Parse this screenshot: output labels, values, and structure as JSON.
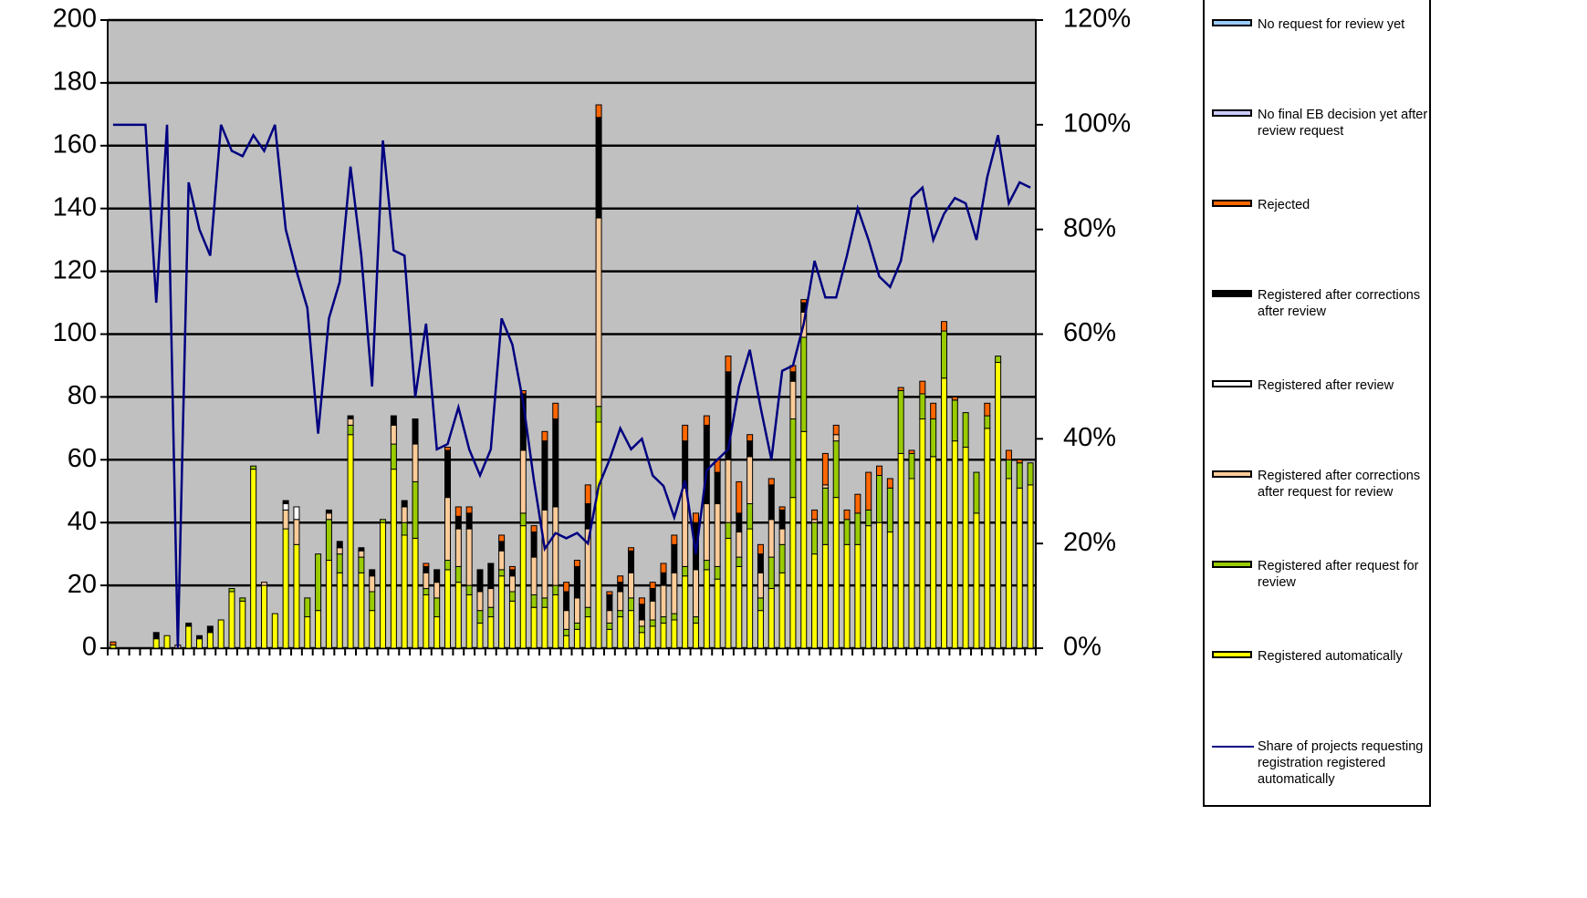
{
  "chart_data": {
    "type": "bar",
    "stacked": true,
    "categories": [
      null,
      null,
      null,
      null,
      null,
      null,
      null,
      null,
      null,
      null,
      null,
      null,
      null,
      null,
      null,
      null,
      null,
      null,
      null,
      null,
      null,
      null,
      null,
      null,
      null,
      null,
      null,
      null,
      null,
      null,
      null,
      null,
      null,
      null,
      null,
      null,
      null,
      null,
      null,
      null,
      null,
      null,
      null,
      null,
      null,
      null,
      null,
      null,
      null,
      null,
      null,
      null,
      null,
      null,
      null,
      null,
      null,
      null,
      null,
      null,
      null,
      null,
      null,
      null,
      null,
      null,
      null,
      null,
      null,
      null,
      null,
      null,
      null,
      null,
      null,
      null,
      null,
      null,
      null,
      null,
      null,
      null,
      null,
      null,
      null,
      null
    ],
    "ylim": [
      0,
      200
    ],
    "yticks": [
      0,
      20,
      40,
      60,
      80,
      100,
      120,
      140,
      160,
      180,
      200
    ],
    "y2lim": [
      0,
      120
    ],
    "y2ticks": [
      {
        "value": 0,
        "label": "0%"
      },
      {
        "value": 20,
        "label": "20%"
      },
      {
        "value": 40,
        "label": "40%"
      },
      {
        "value": 60,
        "label": "60%"
      },
      {
        "value": 80,
        "label": "80%"
      },
      {
        "value": 100,
        "label": "100%"
      },
      {
        "value": 120,
        "label": "120%"
      }
    ],
    "grid": true,
    "background": "#c0c0c0",
    "legend": "right",
    "series": [
      {
        "name": "Registered automatically",
        "color": "#ffff00",
        "values": [
          1,
          0,
          0,
          0,
          3,
          4,
          0,
          7,
          3,
          5,
          9,
          18,
          15,
          57,
          20,
          11,
          38,
          33,
          10,
          12,
          28,
          24,
          68,
          24,
          12,
          40,
          57,
          36,
          35,
          17,
          10,
          25,
          21,
          17,
          8,
          10,
          23,
          15,
          39,
          13,
          13,
          17,
          4,
          6,
          10,
          72,
          6,
          10,
          12,
          5,
          7,
          8,
          9,
          23,
          8,
          25,
          22,
          35,
          26,
          38,
          12,
          19,
          24,
          48,
          69,
          30,
          33,
          48,
          33,
          33,
          39,
          40,
          37,
          62,
          54,
          73,
          61,
          86,
          66,
          64,
          43,
          70,
          91,
          54,
          51,
          52
        ]
      },
      {
        "name": "Registered after request for review",
        "color": "#99cc00",
        "values": [
          0,
          0,
          0,
          0,
          0,
          0,
          0,
          0,
          0,
          0,
          0,
          1,
          1,
          1,
          0,
          0,
          0,
          0,
          6,
          18,
          13,
          6,
          3,
          5,
          6,
          1,
          8,
          4,
          18,
          2,
          6,
          3,
          5,
          3,
          4,
          3,
          2,
          3,
          4,
          4,
          3,
          3,
          2,
          2,
          3,
          5,
          2,
          2,
          4,
          2,
          2,
          2,
          2,
          3,
          2,
          3,
          4,
          5,
          3,
          8,
          4,
          10,
          9,
          25,
          30,
          10,
          18,
          18,
          8,
          10,
          5,
          15,
          14,
          20,
          8,
          8,
          12,
          15,
          13,
          11,
          13,
          4,
          2,
          6,
          8,
          7
        ]
      },
      {
        "name": "Registered after corrections after request for review",
        "color": "#ffcc99",
        "values": [
          0,
          0,
          0,
          0,
          0,
          0,
          1,
          0,
          0,
          0,
          0,
          0,
          0,
          0,
          1,
          0,
          6,
          8,
          0,
          0,
          2,
          2,
          2,
          2,
          5,
          0,
          6,
          5,
          12,
          5,
          5,
          20,
          12,
          18,
          6,
          6,
          6,
          5,
          20,
          12,
          28,
          25,
          6,
          8,
          25,
          60,
          4,
          6,
          8,
          2,
          6,
          10,
          13,
          25,
          15,
          18,
          20,
          20,
          8,
          15,
          8,
          12,
          5,
          12,
          8,
          1,
          1,
          2,
          0,
          0,
          0,
          0,
          0,
          0,
          0,
          0,
          0,
          0,
          0,
          0,
          0,
          0,
          0,
          0,
          0,
          0
        ]
      },
      {
        "name": "Registered after review",
        "color": "#ffffff",
        "values": [
          0,
          0,
          0,
          0,
          0,
          0,
          0,
          0,
          0,
          0,
          0,
          0,
          0,
          0,
          0,
          0,
          2,
          4,
          0,
          0,
          0,
          0,
          0,
          0,
          0,
          0,
          0,
          0,
          0,
          0,
          0,
          0,
          0,
          0,
          0,
          0,
          0,
          0,
          0,
          0,
          0,
          0,
          0,
          0,
          0,
          0,
          0,
          0,
          0,
          0,
          0,
          0,
          0,
          0,
          0,
          0,
          0,
          0,
          0,
          0,
          0,
          0,
          0,
          0,
          0,
          0,
          0,
          0,
          0,
          0,
          0,
          0,
          0,
          0,
          0,
          0,
          0,
          0,
          0,
          0,
          0,
          0,
          0,
          0,
          0,
          0
        ]
      },
      {
        "name": "Registered after corrections after review",
        "color": "#000000",
        "values": [
          0,
          0,
          0,
          0,
          2,
          0,
          0,
          1,
          1,
          2,
          0,
          0,
          0,
          0,
          0,
          0,
          1,
          0,
          0,
          0,
          1,
          2,
          1,
          1,
          2,
          0,
          3,
          2,
          8,
          2,
          4,
          15,
          4,
          5,
          7,
          8,
          3,
          2,
          18,
          8,
          22,
          28,
          6,
          10,
          8,
          32,
          5,
          3,
          7,
          5,
          4,
          4,
          9,
          15,
          15,
          25,
          10,
          28,
          6,
          5,
          6,
          11,
          6,
          3,
          3,
          0,
          0,
          0,
          0,
          0,
          0,
          0,
          0,
          0,
          0,
          0,
          0,
          0,
          0,
          0,
          0,
          0,
          0,
          0,
          0,
          0
        ]
      },
      {
        "name": "Rejected",
        "color": "#ff6600",
        "values": [
          1,
          0,
          0,
          0,
          0,
          0,
          0,
          0,
          0,
          0,
          0,
          0,
          0,
          0,
          0,
          0,
          0,
          0,
          0,
          0,
          0,
          0,
          0,
          0,
          0,
          0,
          0,
          0,
          0,
          1,
          0,
          1,
          3,
          2,
          0,
          0,
          2,
          1,
          1,
          2,
          3,
          5,
          3,
          2,
          6,
          4,
          1,
          2,
          1,
          2,
          2,
          3,
          3,
          5,
          3,
          3,
          4,
          5,
          10,
          2,
          3,
          2,
          1,
          2,
          1,
          3,
          10,
          3,
          3,
          6,
          12,
          3,
          3,
          1,
          1,
          4,
          5,
          3,
          1,
          0,
          0,
          4,
          0,
          3,
          1,
          0
        ]
      },
      {
        "name": "No final EB decision yet after review request",
        "color": "#ccccff",
        "values": [
          0,
          0,
          0,
          0,
          0,
          0,
          0,
          0,
          0,
          0,
          0,
          0,
          0,
          0,
          0,
          0,
          0,
          0,
          0,
          0,
          0,
          0,
          0,
          0,
          0,
          0,
          0,
          0,
          0,
          0,
          0,
          0,
          0,
          0,
          0,
          0,
          0,
          0,
          0,
          0,
          0,
          0,
          0,
          0,
          0,
          0,
          0,
          0,
          0,
          0,
          0,
          0,
          0,
          0,
          0,
          0,
          0,
          0,
          0,
          0,
          0,
          0,
          0,
          0,
          0,
          0,
          0,
          0,
          0,
          0,
          0,
          0,
          0,
          0,
          0,
          0,
          0,
          0,
          0,
          0,
          0,
          0,
          0,
          0,
          0,
          0
        ]
      },
      {
        "name": "No request for review yet",
        "color": "#99ccff",
        "values": [
          0,
          0,
          0,
          0,
          0,
          0,
          0,
          0,
          0,
          0,
          0,
          0,
          0,
          0,
          0,
          0,
          0,
          0,
          0,
          0,
          0,
          0,
          0,
          0,
          0,
          0,
          0,
          0,
          0,
          0,
          0,
          0,
          0,
          0,
          0,
          0,
          0,
          0,
          0,
          0,
          0,
          0,
          0,
          0,
          0,
          0,
          0,
          0,
          0,
          0,
          0,
          0,
          0,
          0,
          0,
          0,
          0,
          0,
          0,
          0,
          0,
          0,
          0,
          0,
          0,
          0,
          0,
          0,
          0,
          0,
          0,
          0,
          0,
          0,
          0,
          0,
          0,
          0,
          0,
          0,
          0,
          0,
          0,
          0,
          0,
          0
        ]
      },
      {
        "name": "Share of projects requesting registration registered automatically",
        "type": "line",
        "axis": "y2",
        "color": "#000080",
        "values": [
          100,
          100,
          100,
          100,
          66,
          100,
          0,
          89,
          80,
          75,
          100,
          95,
          94,
          98,
          95,
          100,
          80,
          72,
          65,
          41,
          63,
          70,
          92,
          75,
          50,
          97,
          76,
          75,
          48,
          62,
          38,
          39,
          46,
          38,
          33,
          38,
          63,
          58,
          47,
          32,
          19,
          22,
          21,
          22,
          20,
          31,
          36,
          42,
          38,
          40,
          33,
          31,
          25,
          32,
          18,
          34,
          36,
          38,
          50,
          57,
          46,
          36,
          53,
          54,
          62,
          74,
          67,
          67,
          75,
          84,
          78,
          71,
          69,
          74,
          86,
          88,
          78,
          83,
          86,
          85,
          78,
          90,
          98,
          85,
          89,
          88
        ]
      }
    ]
  }
}
